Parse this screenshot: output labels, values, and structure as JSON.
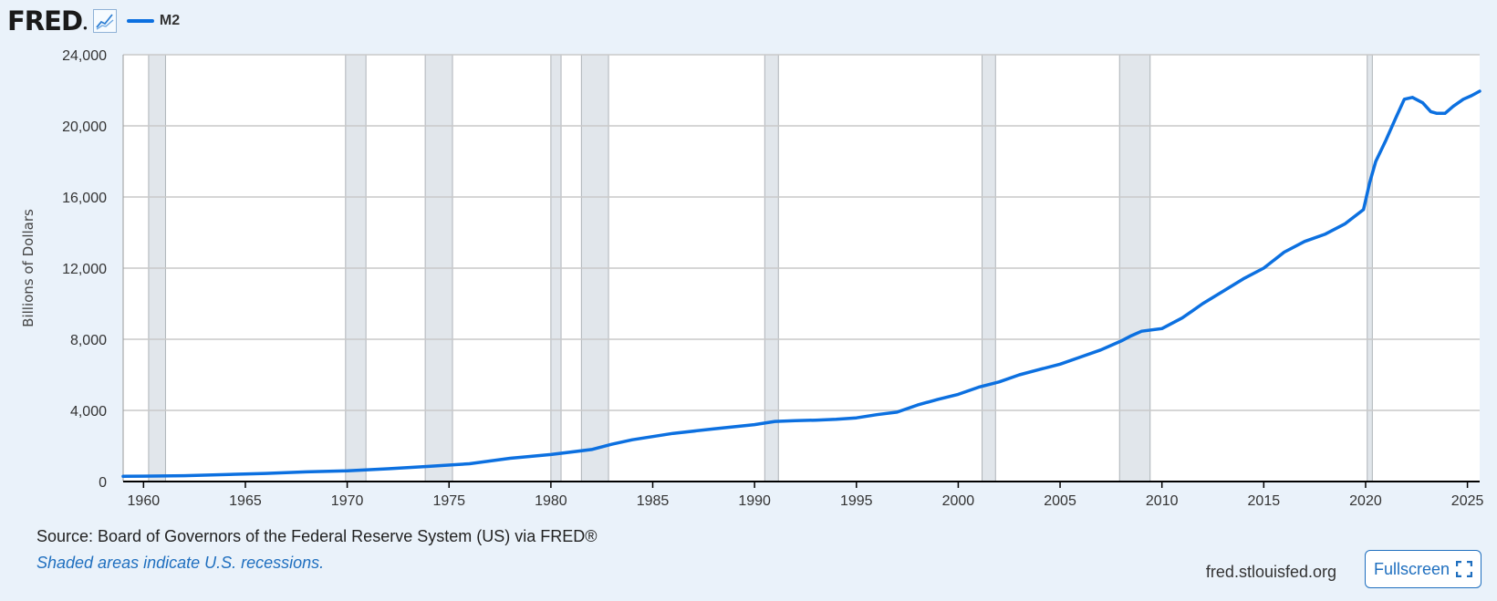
{
  "header": {
    "logo_text": "FRED",
    "logo_icon": "line-chart-icon",
    "legend_label": "M2"
  },
  "colors": {
    "series": "#0c70e0",
    "recession": "#e1e6eb",
    "grid": "#c9c9c9",
    "link": "#1f6fbf"
  },
  "footer": {
    "source": "Source: Board of Governors of the Federal Reserve System (US) via FRED®",
    "note": "Shaded areas indicate U.S. recessions.",
    "site": "fred.stlouisfed.org",
    "fullscreen_label": "Fullscreen",
    "fullscreen_icon": "expand-icon"
  },
  "chart_data": {
    "type": "line",
    "title": "",
    "xlabel": "",
    "ylabel": "Billions of Dollars",
    "xlim": [
      1959.0,
      2025.6
    ],
    "ylim": [
      0,
      24000
    ],
    "grid": true,
    "legend": "top-left",
    "x_ticks": [
      "1960",
      "1965",
      "1970",
      "1975",
      "1980",
      "1985",
      "1990",
      "1995",
      "2000",
      "2005",
      "2010",
      "2015",
      "2020",
      "2025"
    ],
    "y_ticks": [
      "0",
      "4,000",
      "8,000",
      "12,000",
      "16,000",
      "20,000",
      "24,000"
    ],
    "recessions": [
      [
        1960.25,
        1961.08
      ],
      [
        1969.92,
        1970.92
      ],
      [
        1973.83,
        1975.17
      ],
      [
        1980.0,
        1980.5
      ],
      [
        1981.5,
        1982.83
      ],
      [
        1990.5,
        1991.17
      ],
      [
        2001.17,
        2001.83
      ],
      [
        2007.92,
        2009.42
      ],
      [
        2020.08,
        2020.33
      ]
    ],
    "series": [
      {
        "name": "M2",
        "x": [
          1959.0,
          1960,
          1962,
          1964,
          1966,
          1968,
          1970,
          1972,
          1974,
          1976,
          1978,
          1980,
          1982,
          1983,
          1984,
          1986,
          1988,
          1990,
          1991,
          1992,
          1993,
          1994,
          1995,
          1996,
          1997,
          1998,
          1999,
          2000,
          2001,
          2002,
          2003,
          2004,
          2005,
          2006,
          2007,
          2008,
          2008.5,
          2009,
          2010,
          2011,
          2011.5,
          2012,
          2013,
          2014,
          2015,
          2016,
          2017,
          2018,
          2019,
          2019.9,
          2020.2,
          2020.5,
          2021,
          2021.5,
          2021.9,
          2022.3,
          2022.8,
          2023.2,
          2023.5,
          2023.9,
          2024.3,
          2024.8,
          2025.2,
          2025.6
        ],
        "y": [
          290,
          300,
          330,
          390,
          455,
          545,
          600,
          720,
          850,
          1000,
          1310,
          1520,
          1800,
          2100,
          2350,
          2710,
          2960,
          3200,
          3380,
          3420,
          3450,
          3500,
          3580,
          3760,
          3900,
          4300,
          4620,
          4900,
          5300,
          5600,
          6000,
          6300,
          6600,
          7000,
          7400,
          7900,
          8200,
          8450,
          8600,
          9200,
          9600,
          10000,
          10700,
          11400,
          12000,
          12900,
          13500,
          13900,
          14500,
          15300,
          16800,
          18000,
          19200,
          20500,
          21500,
          21600,
          21300,
          20800,
          20700,
          20700,
          21100,
          21500,
          21700,
          21950
        ]
      }
    ]
  }
}
